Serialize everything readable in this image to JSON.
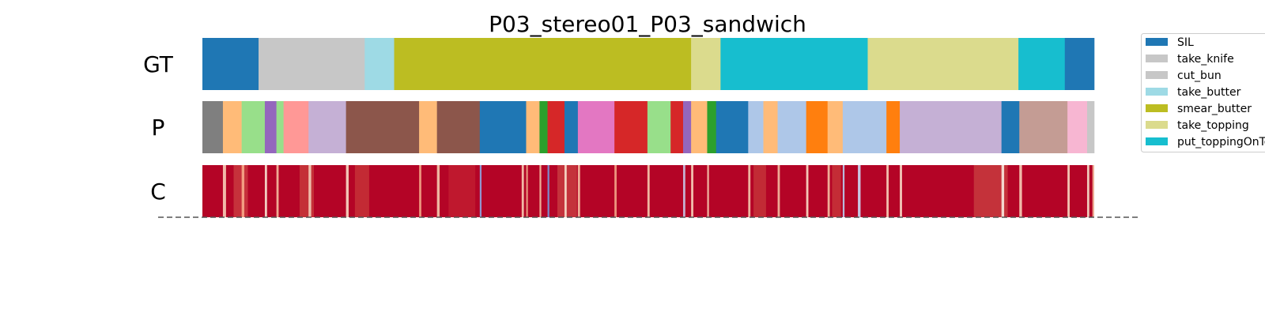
{
  "chart_data": {
    "type": "segmentation",
    "title": "P03_stereo01_P03_sandwich",
    "xlim": [
      0,
      100
    ],
    "rows": [
      {
        "label": "GT",
        "segments": [
          {
            "start": 0.0,
            "end": 6.3,
            "color": "#1f77b4"
          },
          {
            "start": 6.3,
            "end": 18.2,
            "color": "#c7c7c7"
          },
          {
            "start": 18.2,
            "end": 21.5,
            "color": "#9edae5"
          },
          {
            "start": 21.5,
            "end": 54.8,
            "color": "#bcbd22"
          },
          {
            "start": 54.8,
            "end": 58.1,
            "color": "#dbdb8d"
          },
          {
            "start": 58.1,
            "end": 74.6,
            "color": "#17becf"
          },
          {
            "start": 74.6,
            "end": 91.5,
            "color": "#dbdb8d"
          },
          {
            "start": 91.5,
            "end": 96.7,
            "color": "#17becf"
          },
          {
            "start": 96.7,
            "end": 100.0,
            "color": "#1f77b4"
          }
        ]
      },
      {
        "label": "P",
        "segments": [
          {
            "start": 0.0,
            "end": 2.3,
            "color": "#7f7f7f"
          },
          {
            "start": 2.3,
            "end": 4.4,
            "color": "#ffbb78"
          },
          {
            "start": 4.4,
            "end": 7.0,
            "color": "#98df8a"
          },
          {
            "start": 7.0,
            "end": 8.3,
            "color": "#9467bd"
          },
          {
            "start": 8.3,
            "end": 9.1,
            "color": "#98df8a"
          },
          {
            "start": 9.1,
            "end": 11.9,
            "color": "#ff9896"
          },
          {
            "start": 11.9,
            "end": 16.1,
            "color": "#c5b0d5"
          },
          {
            "start": 16.1,
            "end": 24.3,
            "color": "#8c564b"
          },
          {
            "start": 24.3,
            "end": 26.3,
            "color": "#ffbb78"
          },
          {
            "start": 26.3,
            "end": 31.1,
            "color": "#8c564b"
          },
          {
            "start": 31.1,
            "end": 36.3,
            "color": "#1f77b4"
          },
          {
            "start": 36.3,
            "end": 37.8,
            "color": "#ffbb78"
          },
          {
            "start": 37.8,
            "end": 38.7,
            "color": "#2ca02c"
          },
          {
            "start": 38.7,
            "end": 40.6,
            "color": "#d62728"
          },
          {
            "start": 40.6,
            "end": 42.1,
            "color": "#1f77b4"
          },
          {
            "start": 42.1,
            "end": 46.2,
            "color": "#e377c2"
          },
          {
            "start": 46.2,
            "end": 49.9,
            "color": "#d62728"
          },
          {
            "start": 49.9,
            "end": 52.5,
            "color": "#98df8a"
          },
          {
            "start": 52.5,
            "end": 53.9,
            "color": "#d62728"
          },
          {
            "start": 53.9,
            "end": 54.8,
            "color": "#9467bd"
          },
          {
            "start": 54.8,
            "end": 56.6,
            "color": "#ffbb78"
          },
          {
            "start": 56.6,
            "end": 57.6,
            "color": "#2ca02c"
          },
          {
            "start": 57.6,
            "end": 61.2,
            "color": "#1f77b4"
          },
          {
            "start": 61.2,
            "end": 62.9,
            "color": "#aec7e8"
          },
          {
            "start": 62.9,
            "end": 64.5,
            "color": "#ffbb78"
          },
          {
            "start": 64.5,
            "end": 67.7,
            "color": "#aec7e8"
          },
          {
            "start": 67.7,
            "end": 70.1,
            "color": "#ff7f0e"
          },
          {
            "start": 70.1,
            "end": 71.8,
            "color": "#ffbb78"
          },
          {
            "start": 71.8,
            "end": 76.7,
            "color": "#aec7e8"
          },
          {
            "start": 76.7,
            "end": 78.2,
            "color": "#ff7f0e"
          },
          {
            "start": 78.2,
            "end": 89.6,
            "color": "#c5b0d5"
          },
          {
            "start": 89.6,
            "end": 91.6,
            "color": "#1f77b4"
          },
          {
            "start": 91.6,
            "end": 97.0,
            "color": "#c49c94"
          },
          {
            "start": 97.0,
            "end": 99.2,
            "color": "#f7b6d2"
          },
          {
            "start": 99.2,
            "end": 100.0,
            "color": "#c7c7c7"
          }
        ]
      },
      {
        "label": "C",
        "type": "heatstrip",
        "base_color": "#b40426",
        "events": [
          {
            "x": 2.3,
            "w": 0.35,
            "color": "#f4c4b0"
          },
          {
            "x": 3.5,
            "w": 1.6,
            "color": "#d6584c"
          },
          {
            "x": 4.4,
            "w": 0.3,
            "color": "#f6a385"
          },
          {
            "x": 7.0,
            "w": 0.25,
            "color": "#f6d8c8"
          },
          {
            "x": 8.3,
            "w": 0.25,
            "color": "#f2b49a"
          },
          {
            "x": 10.9,
            "w": 1.6,
            "color": "#d25546"
          },
          {
            "x": 11.9,
            "w": 0.3,
            "color": "#f0c5b0"
          },
          {
            "x": 16.1,
            "w": 0.3,
            "color": "#f5d0bd"
          },
          {
            "x": 17.1,
            "w": 1.6,
            "color": "#d04a3f"
          },
          {
            "x": 24.3,
            "w": 0.25,
            "color": "#ee9b80"
          },
          {
            "x": 26.3,
            "w": 0.3,
            "color": "#f1c0a8"
          },
          {
            "x": 27.6,
            "w": 3.0,
            "color": "#c82a34"
          },
          {
            "x": 31.1,
            "w": 0.2,
            "color": "#8f9dd8"
          },
          {
            "x": 35.8,
            "w": 0.25,
            "color": "#f4c3ac"
          },
          {
            "x": 36.3,
            "w": 0.2,
            "color": "#e89a7e"
          },
          {
            "x": 37.8,
            "w": 0.2,
            "color": "#f0b79b"
          },
          {
            "x": 38.7,
            "w": 0.2,
            "color": "#7b8fd0"
          },
          {
            "x": 39.8,
            "w": 2.2,
            "color": "#d25a4c"
          },
          {
            "x": 40.6,
            "w": 0.25,
            "color": "#f7d7c4"
          },
          {
            "x": 42.1,
            "w": 0.25,
            "color": "#f3b79c"
          },
          {
            "x": 46.2,
            "w": 0.25,
            "color": "#ef9c82"
          },
          {
            "x": 49.9,
            "w": 0.25,
            "color": "#f2c1a8"
          },
          {
            "x": 53.9,
            "w": 0.25,
            "color": "#c7b7d8"
          },
          {
            "x": 54.8,
            "w": 0.25,
            "color": "#f4c8b2"
          },
          {
            "x": 56.6,
            "w": 0.2,
            "color": "#f2bda4"
          },
          {
            "x": 61.2,
            "w": 0.25,
            "color": "#f0c0a6"
          },
          {
            "x": 61.8,
            "w": 1.4,
            "color": "#ce4c41"
          },
          {
            "x": 64.5,
            "w": 0.25,
            "color": "#f0b39a"
          },
          {
            "x": 67.7,
            "w": 0.25,
            "color": "#f7d2be"
          },
          {
            "x": 70.1,
            "w": 0.25,
            "color": "#f1b79d"
          },
          {
            "x": 70.6,
            "w": 1.0,
            "color": "#d14e43"
          },
          {
            "x": 71.8,
            "w": 0.2,
            "color": "#b9c4e6"
          },
          {
            "x": 73.5,
            "w": 0.3,
            "color": "#c8d0ec"
          },
          {
            "x": 76.7,
            "w": 0.25,
            "color": "#f4c8b2"
          },
          {
            "x": 78.2,
            "w": 0.25,
            "color": "#f6d2c0"
          },
          {
            "x": 86.5,
            "w": 3.8,
            "color": "#d25a4a"
          },
          {
            "x": 89.6,
            "w": 0.3,
            "color": "#f6e1d6"
          },
          {
            "x": 91.6,
            "w": 0.3,
            "color": "#f3c5b0"
          },
          {
            "x": 97.0,
            "w": 0.25,
            "color": "#f5cdb9"
          },
          {
            "x": 99.2,
            "w": 0.25,
            "color": "#f1d0bf"
          },
          {
            "x": 99.8,
            "w": 0.2,
            "color": "#f0b49a"
          }
        ]
      }
    ],
    "legend": {
      "position": "top-right",
      "entries": [
        {
          "label": "SIL",
          "color": "#1f77b4"
        },
        {
          "label": "take_knife",
          "color": "#c7c7c7"
        },
        {
          "label": "cut_bun",
          "color": "#c7c7c7"
        },
        {
          "label": "take_butter",
          "color": "#9edae5"
        },
        {
          "label": "smear_butter",
          "color": "#bcbd22"
        },
        {
          "label": "take_topping",
          "color": "#dbdb8d"
        },
        {
          "label": "put_toppingOnTop",
          "color": "#17becf"
        }
      ]
    },
    "baseline": {
      "style": "dashed",
      "color": "#555555"
    }
  }
}
